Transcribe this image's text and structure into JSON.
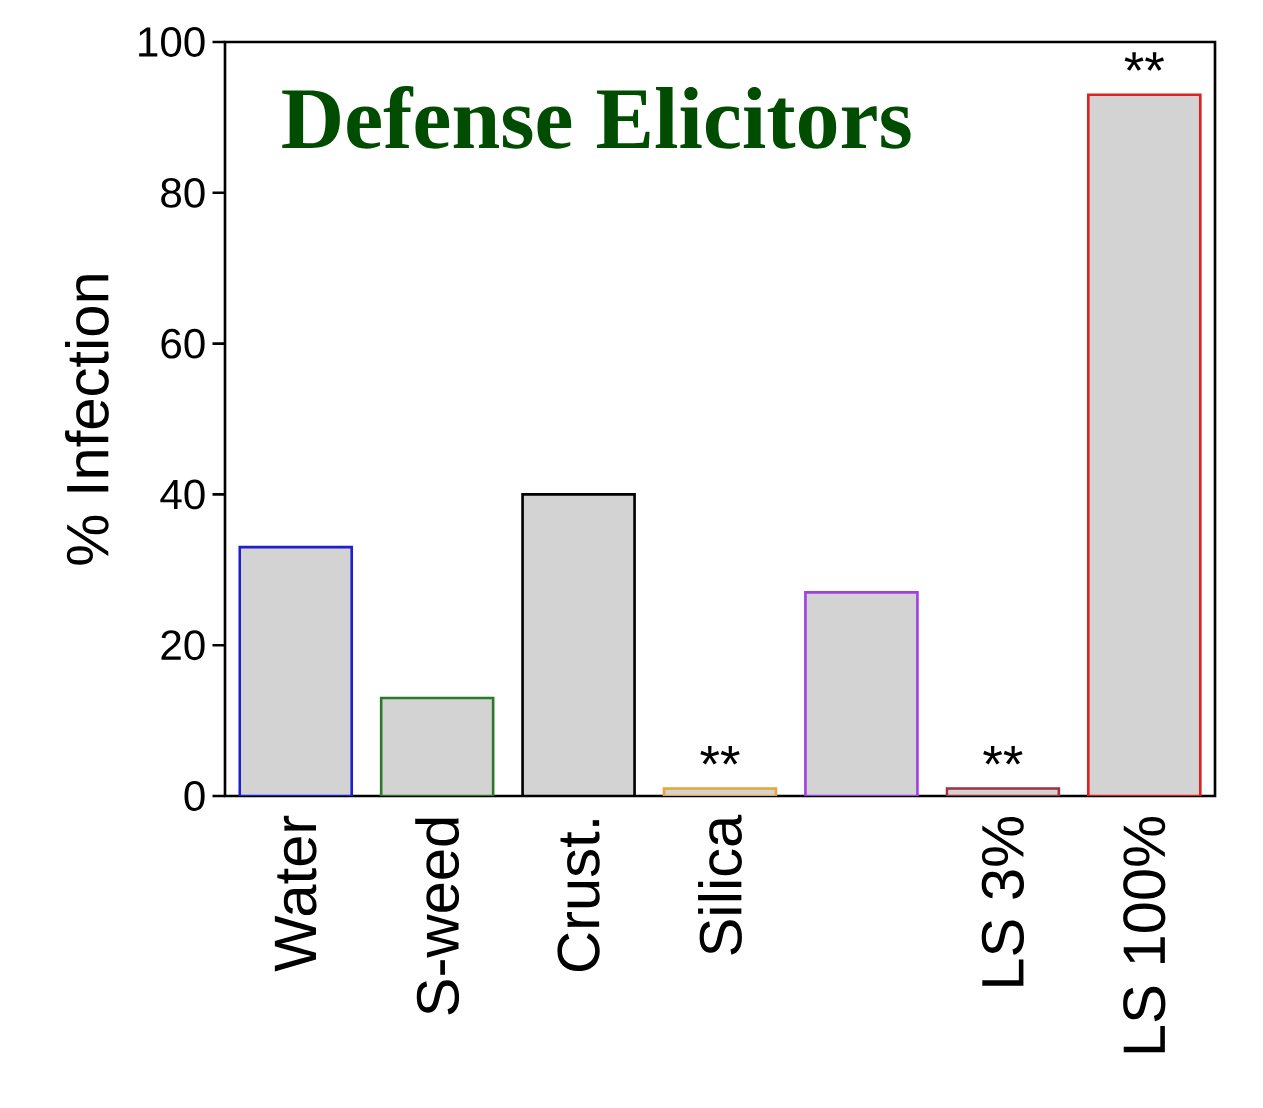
{
  "chart_data": {
    "type": "bar",
    "title": "Defense Elicitors",
    "ylabel": "% Infection",
    "categories": [
      "Water",
      "S-weed",
      "Crust.",
      "Silica",
      null,
      "LS 3%",
      "LS 100%"
    ],
    "values": [
      33,
      13,
      40,
      1,
      27,
      1,
      93
    ],
    "color": "#d3d3d3",
    "colors": [
      "#1f1fd0",
      "#2a7a2a",
      "#000000",
      "#e8a33a",
      "#a040e0",
      "#a03040",
      "#e02020"
    ],
    "ylim": [
      0,
      100
    ],
    "yticks": [
      0,
      20,
      40,
      60,
      80,
      100
    ],
    "grid": false,
    "annotations": [
      {
        "text": "**",
        "x": "Silica",
        "y": 1
      },
      {
        "text": "**",
        "x": "LS 3%",
        "y": 1
      },
      {
        "text": "**",
        "x": "LS 100%",
        "y": 93
      }
    ]
  }
}
